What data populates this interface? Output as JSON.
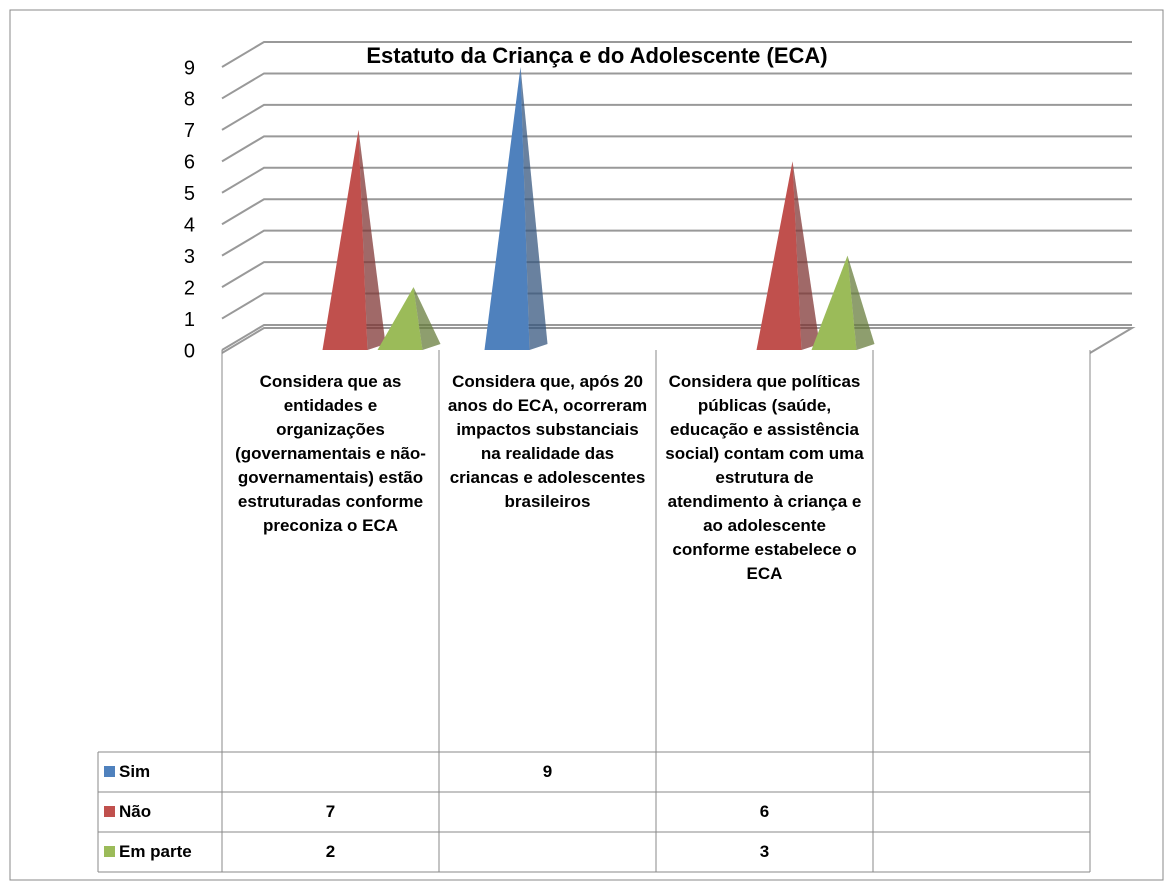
{
  "chart_data": {
    "type": "pyramid3d",
    "title": "Estatuto da Criança e do Adolescente (ECA)",
    "categories": [
      "Considera que as entidades e organizações (governamentais e não-governamentais) estão estruturadas conforme preconiza o ECA",
      "Considera que, após 20 anos do ECA, ocorreram impactos substanciais na realidade das criancas e adolescentes brasileiros",
      "Considera que políticas públicas (saúde, educação e assistência social) contam com uma estrutura de atendimento à criança e ao adolescente conforme estabelece o ECA",
      null
    ],
    "series": [
      {
        "name": "Sim",
        "color": "#4f81bd",
        "values": [
          null,
          9,
          null,
          null
        ]
      },
      {
        "name": "Não",
        "color": "#c0504d",
        "values": [
          7,
          null,
          6,
          null
        ]
      },
      {
        "name": "Em parte",
        "color": "#9bbb59",
        "values": [
          2,
          null,
          3,
          null
        ]
      }
    ],
    "ylim": [
      0,
      9
    ],
    "yticks": [
      0,
      1,
      2,
      3,
      4,
      5,
      6,
      7,
      8,
      9
    ],
    "grid": true,
    "data_table": true
  }
}
